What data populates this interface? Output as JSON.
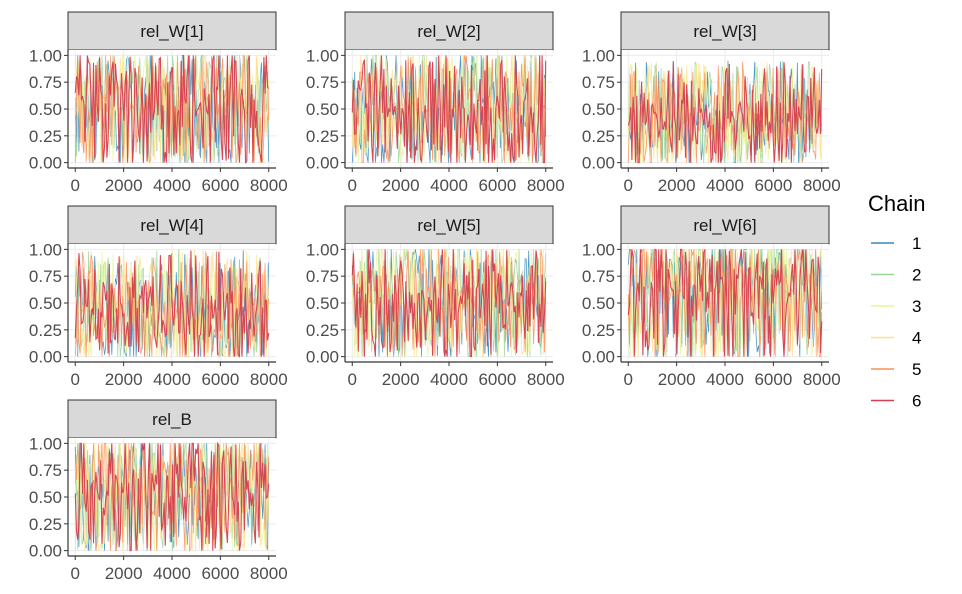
{
  "chart_data": {
    "type": "line",
    "facets": [
      {
        "title": "rel_W[1]",
        "base": 0.62,
        "spread": 0.3
      },
      {
        "title": "rel_W[2]",
        "base": 0.55,
        "spread": 0.35
      },
      {
        "title": "rel_W[3]",
        "base": 0.45,
        "spread": 0.35
      },
      {
        "title": "rel_W[4]",
        "base": 0.5,
        "spread": 0.35
      },
      {
        "title": "rel_W[5]",
        "base": 0.62,
        "spread": 0.3
      },
      {
        "title": "rel_W[6]",
        "base": 0.7,
        "spread": 0.25
      },
      {
        "title": "rel_B",
        "base": 0.65,
        "spread": 0.3
      }
    ],
    "x_ticks": [
      0,
      2000,
      4000,
      6000,
      8000
    ],
    "x_tick_labels": [
      "0",
      "2000",
      "4000",
      "6000",
      "8000"
    ],
    "y_ticks": [
      0,
      0.25,
      0.5,
      0.75,
      1.0
    ],
    "y_tick_labels": [
      "0.00",
      "0.25",
      "0.50",
      "0.75",
      "1.00"
    ],
    "xlim": [
      -300,
      8300
    ],
    "ylim": [
      -0.05,
      1.05
    ],
    "grid": true,
    "legend": {
      "title": "Chain",
      "position": "right",
      "entries": [
        {
          "label": "1",
          "color": "#3288BD"
        },
        {
          "label": "2",
          "color": "#99D594"
        },
        {
          "label": "3",
          "color": "#E6F598"
        },
        {
          "label": "4",
          "color": "#FEE08B"
        },
        {
          "label": "5",
          "color": "#FC8D59"
        },
        {
          "label": "6",
          "color": "#D53E4F"
        }
      ]
    }
  }
}
